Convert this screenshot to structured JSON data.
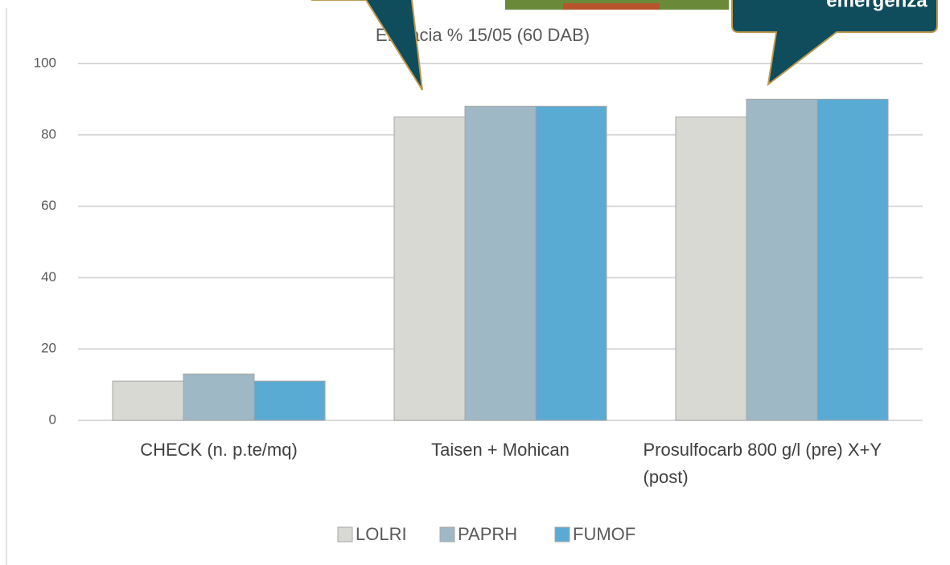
{
  "chart_data": {
    "type": "bar",
    "title": "Efficacia % 15/05 (60 DAB)",
    "annotations": [
      "emergenza"
    ],
    "categories": [
      "CHECK (n. p.te/mq)",
      "Taisen +  Mohican",
      "Prosulfocarb 800 g/l (pre) X+Y (post)"
    ],
    "series": [
      {
        "name": "LOLRI",
        "color": "#d9d9d4",
        "values": [
          11,
          85,
          85
        ]
      },
      {
        "name": "PAPRH",
        "color": "#9fb8c5",
        "values": [
          13,
          88,
          90
        ]
      },
      {
        "name": "FUMOF",
        "color": "#5aabd3",
        "values": [
          11,
          88,
          90
        ]
      }
    ],
    "ylim": [
      0,
      100
    ],
    "yticks": [
      0,
      20,
      40,
      60,
      80,
      100
    ],
    "grid": true,
    "legend": "bottom"
  }
}
